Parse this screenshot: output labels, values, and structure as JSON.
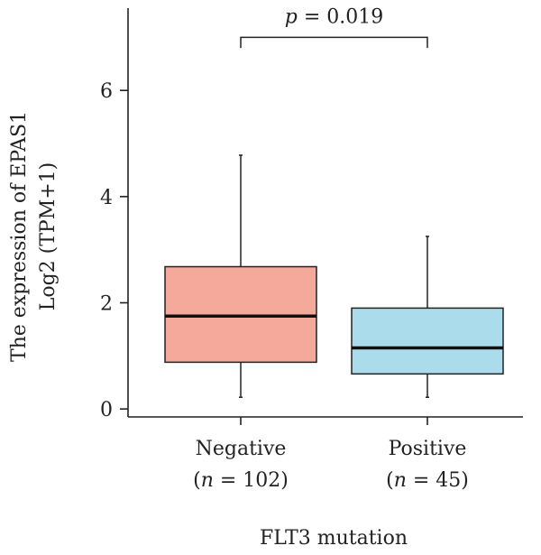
{
  "chart_data": {
    "type": "box",
    "ylabel_line1": "The expression of EPAS1",
    "ylabel_line2": "Log2 (TPM+1)",
    "xlabel": "FLT3 mutation",
    "ylim": [
      -0.15,
      7.55
    ],
    "yticks": [
      0,
      2,
      4,
      6
    ],
    "ytick_labels": [
      "0",
      "2",
      "4",
      "6"
    ],
    "significance": {
      "p_symbol": "p",
      "p_text": " = 0.019",
      "y": 7.0,
      "drop": 6.8
    },
    "groups": [
      {
        "name": "Negative",
        "n_prefix": "(",
        "n_symbol": "n",
        "n_text": " = 102)",
        "min": 0.22,
        "q1": 0.88,
        "median": 1.75,
        "q3": 2.68,
        "max": 4.78,
        "color": "#F4A99B"
      },
      {
        "name": "Positive",
        "n_prefix": "(",
        "n_symbol": "n",
        "n_text": " = 45)",
        "min": 0.22,
        "q1": 0.66,
        "median": 1.15,
        "q3": 1.9,
        "max": 3.25,
        "color": "#AADCEC"
      }
    ],
    "grid": false,
    "legend": "none"
  }
}
